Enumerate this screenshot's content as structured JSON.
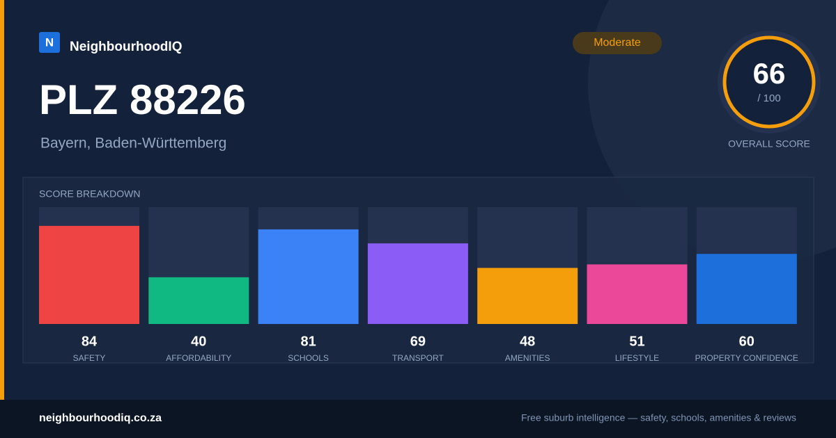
{
  "brand": {
    "logo_letter": "N",
    "name": "NeighbourhoodIQ"
  },
  "title": "PLZ 88226",
  "subtitle": "Bayern, Baden-Württemberg",
  "badge": "Moderate",
  "score": {
    "value": 66,
    "max_label": "/ 100",
    "caption": "OVERALL SCORE"
  },
  "chart_data": {
    "type": "bar",
    "title": "SCORE BREAKDOWN",
    "categories": [
      "SAFETY",
      "AFFORDABILITY",
      "SCHOOLS",
      "TRANSPORT",
      "AMENITIES",
      "LIFESTYLE",
      "PROPERTY CONFIDENCE"
    ],
    "values": [
      84,
      40,
      81,
      69,
      48,
      51,
      60
    ],
    "colors": [
      "#ef4444",
      "#10b981",
      "#3b82f6",
      "#8b5cf6",
      "#f59e0b",
      "#ec4899",
      "#1d6fdc"
    ],
    "ylim": [
      0,
      100
    ]
  },
  "footer": {
    "site": "neighbourhoodiq.co.za",
    "tagline": "Free suburb intelligence — safety, schools, amenities & reviews"
  }
}
